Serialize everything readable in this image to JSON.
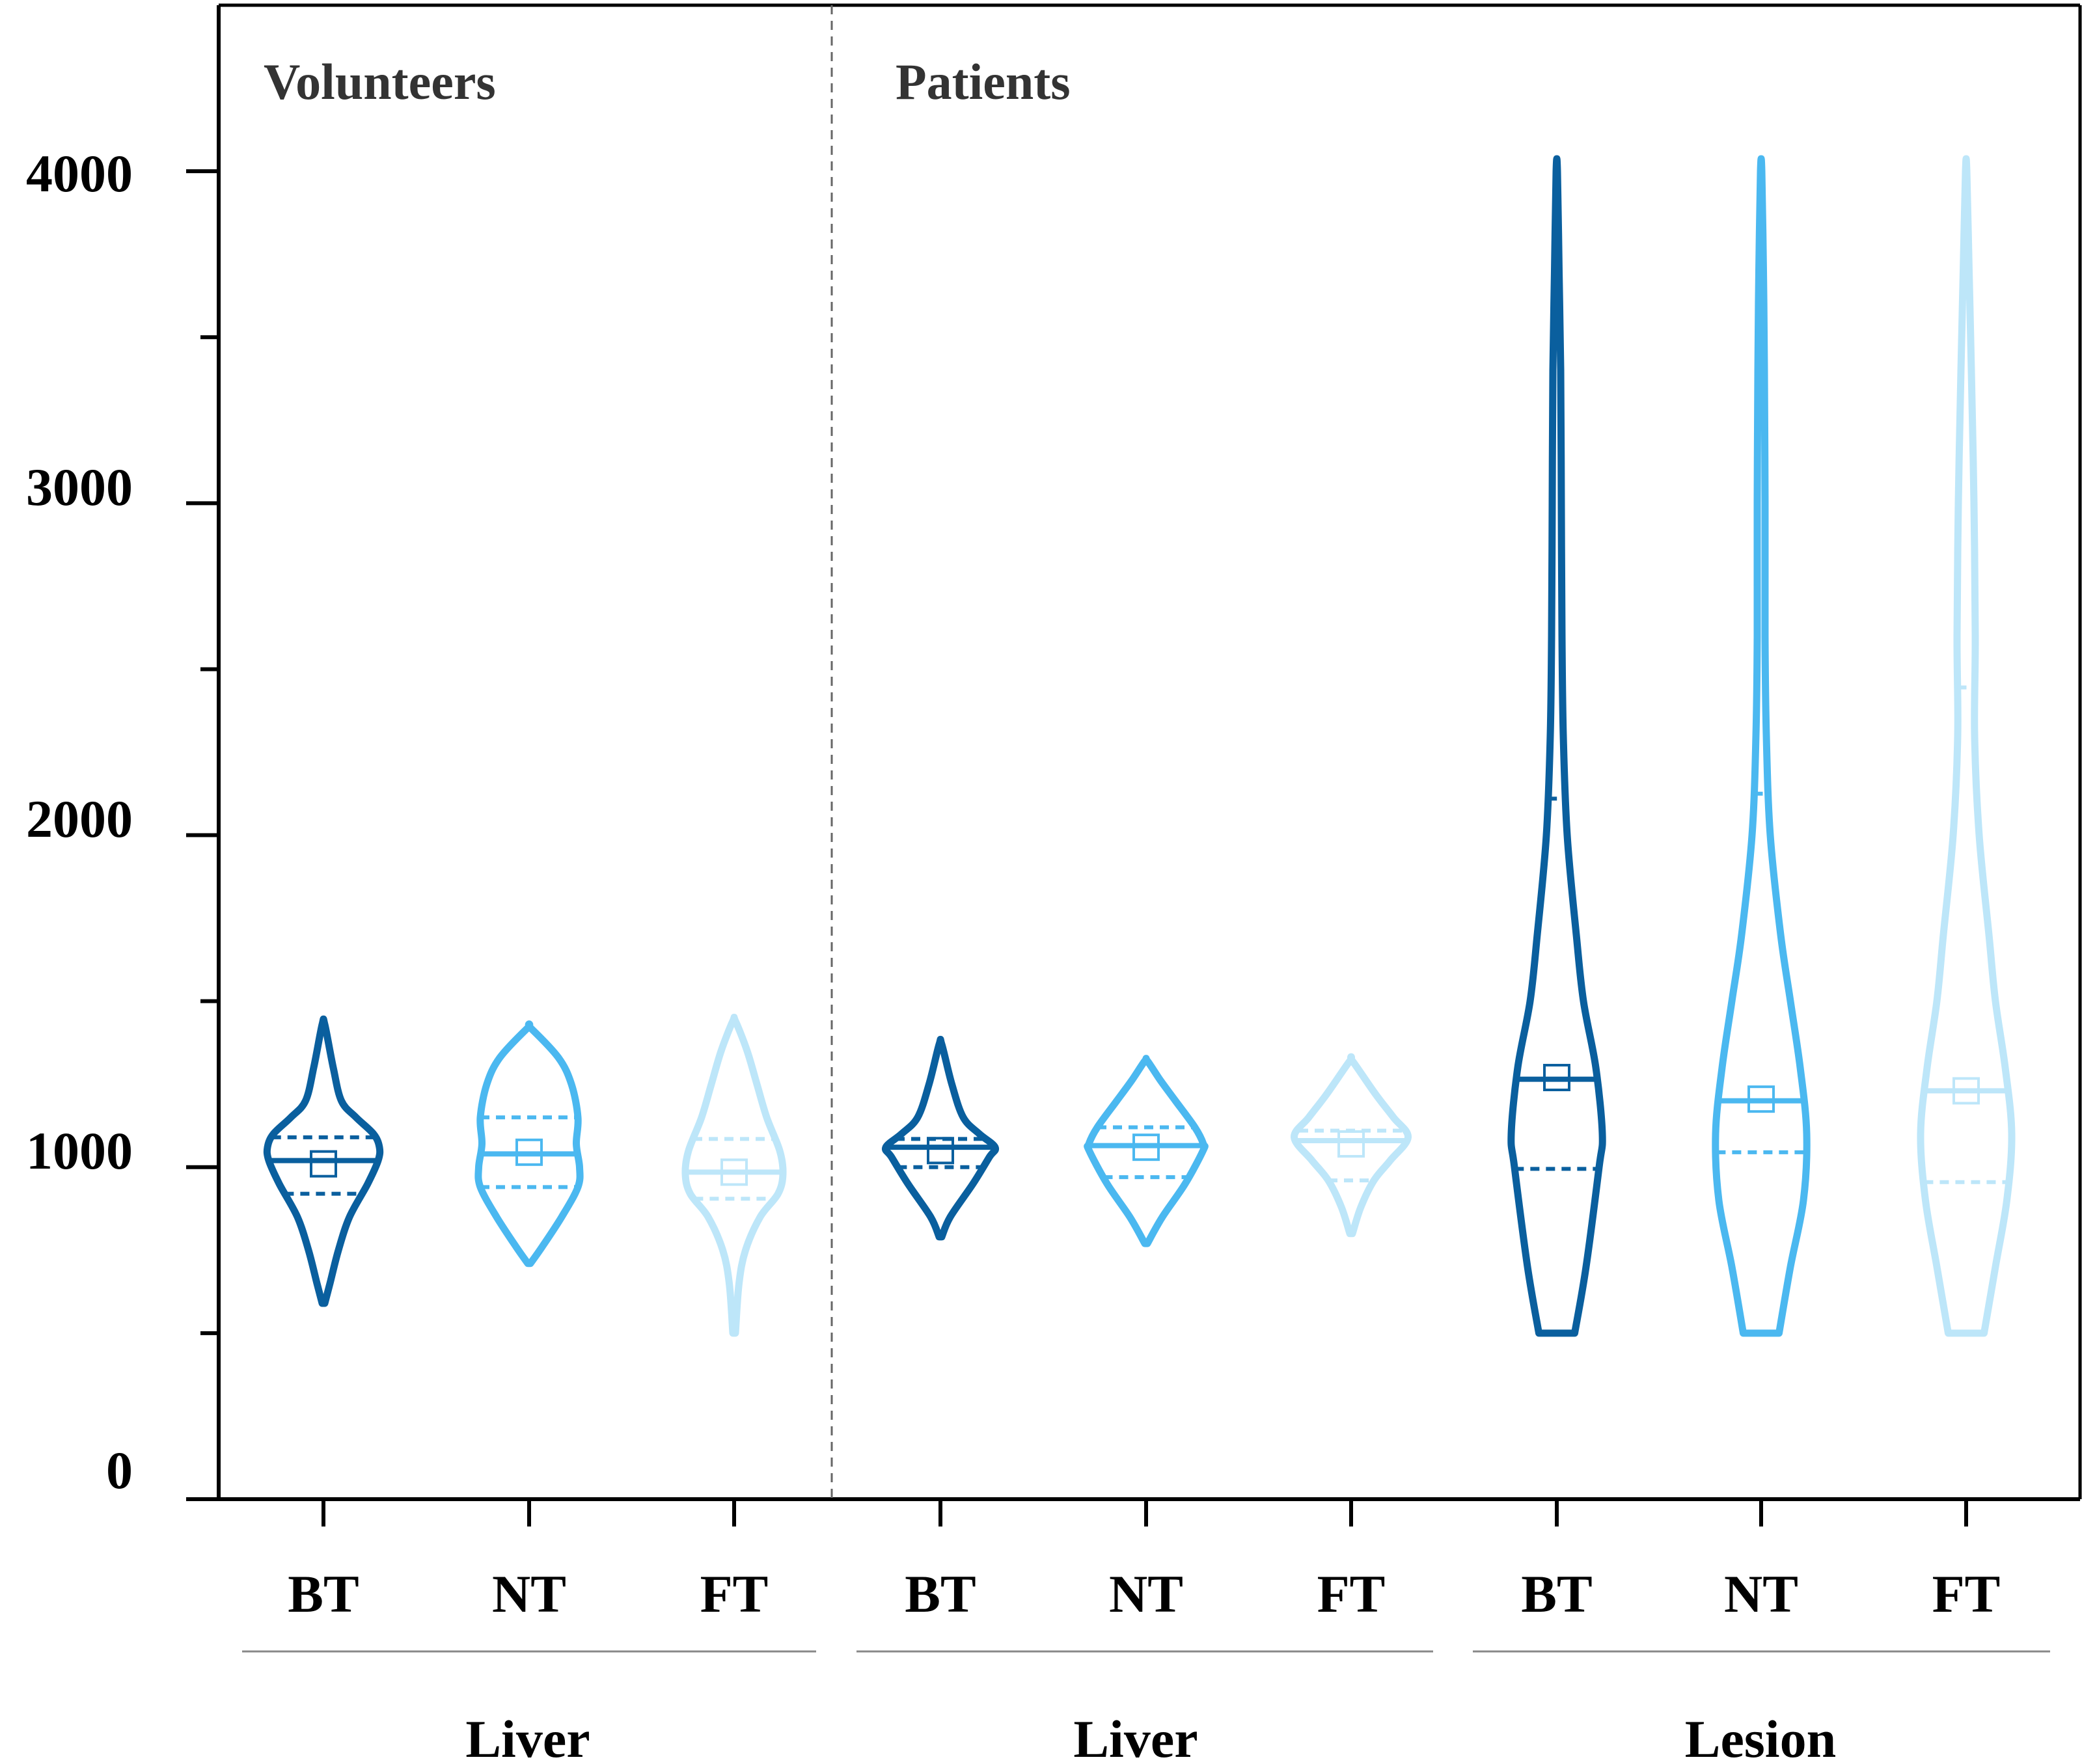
{
  "chart_data": {
    "type": "violin",
    "ylim": [
      0,
      4500
    ],
    "yticks_major": [
      0,
      1000,
      2000,
      3000,
      4000
    ],
    "yticks_minor": [
      500,
      1500,
      2500,
      3500
    ],
    "ytick_labels": [
      "0",
      "1000",
      "2000",
      "3000",
      "4000"
    ],
    "panels": [
      {
        "label": "Volunteers"
      },
      {
        "label": "Patients"
      }
    ],
    "groups": [
      {
        "label": "Liver"
      },
      {
        "label": "Liver"
      },
      {
        "label": "Lesion"
      }
    ],
    "series": [
      {
        "category": "BT",
        "panel": "Volunteers",
        "group": "Liver",
        "color": "#0a5f9e",
        "min": 590,
        "max": 1430,
        "median": 1020,
        "q1": 920,
        "q3": 1090,
        "mean": 1010,
        "profile": [
          [
            590,
            4
          ],
          [
            650,
            20
          ],
          [
            750,
            46
          ],
          [
            850,
            80
          ],
          [
            950,
            136
          ],
          [
            1020,
            168
          ],
          [
            1060,
            172
          ],
          [
            1100,
            154
          ],
          [
            1150,
            100
          ],
          [
            1200,
            55
          ],
          [
            1300,
            30
          ],
          [
            1430,
            4
          ]
        ]
      },
      {
        "category": "NT",
        "panel": "Volunteers",
        "group": "Liver",
        "color": "#4bb8f0",
        "min": 710,
        "max": 1420,
        "median": 1040,
        "q1": 940,
        "q3": 1150,
        "mean": 1045,
        "profile": [
          [
            710,
            4
          ],
          [
            760,
            40
          ],
          [
            850,
            100
          ],
          [
            940,
            150
          ],
          [
            1000,
            155
          ],
          [
            1070,
            145
          ],
          [
            1150,
            150
          ],
          [
            1250,
            130
          ],
          [
            1330,
            90
          ],
          [
            1420,
            4
          ]
        ]
      },
      {
        "category": "FT",
        "panel": "Volunteers",
        "group": "Liver",
        "color": "#bde6f9",
        "min": 500,
        "max": 1440,
        "median": 985,
        "q1": 905,
        "q3": 1085,
        "mean": 985,
        "profile": [
          [
            500,
            4
          ],
          [
            650,
            15
          ],
          [
            750,
            35
          ],
          [
            850,
            80
          ],
          [
            920,
            135
          ],
          [
            980,
            150
          ],
          [
            1050,
            140
          ],
          [
            1150,
            100
          ],
          [
            1250,
            70
          ],
          [
            1350,
            40
          ],
          [
            1440,
            4
          ]
        ]
      },
      {
        "category": "BT",
        "panel": "Patients",
        "group": "Liver",
        "color": "#0a5f9e",
        "min": 790,
        "max": 1370,
        "median": 1060,
        "q1": 1000,
        "q3": 1085,
        "mean": 1050,
        "profile": [
          [
            790,
            4
          ],
          [
            850,
            30
          ],
          [
            950,
            100
          ],
          [
            1030,
            150
          ],
          [
            1060,
            168
          ],
          [
            1100,
            120
          ],
          [
            1150,
            70
          ],
          [
            1250,
            35
          ],
          [
            1370,
            4
          ]
        ]
      },
      {
        "category": "NT",
        "panel": "Patients",
        "group": "Liver",
        "color": "#4bb8f0",
        "min": 770,
        "max": 1320,
        "median": 1065,
        "q1": 970,
        "q3": 1120,
        "mean": 1060,
        "profile": [
          [
            770,
            4
          ],
          [
            850,
            50
          ],
          [
            950,
            120
          ],
          [
            1050,
            175
          ],
          [
            1070,
            176
          ],
          [
            1120,
            150
          ],
          [
            1200,
            90
          ],
          [
            1260,
            45
          ],
          [
            1320,
            4
          ]
        ]
      },
      {
        "category": "FT",
        "panel": "Patients",
        "group": "Liver",
        "color": "#bde6f9",
        "min": 800,
        "max": 1320,
        "median": 1080,
        "q1": 960,
        "q3": 1110,
        "mean": 1070,
        "profile": [
          [
            800,
            4
          ],
          [
            880,
            30
          ],
          [
            960,
            70
          ],
          [
            1020,
            120
          ],
          [
            1090,
            175
          ],
          [
            1150,
            130
          ],
          [
            1220,
            75
          ],
          [
            1320,
            4
          ]
        ]
      },
      {
        "category": "BT",
        "panel": "Patients",
        "group": "Lesion",
        "color": "#0a5f9e",
        "min": 500,
        "max": 4000,
        "median": 1265,
        "q1": 995,
        "q3": 2110,
        "mean": 1270,
        "profile": [
          [
            500,
            55
          ],
          [
            700,
            90
          ],
          [
            1000,
            130
          ],
          [
            1100,
            140
          ],
          [
            1300,
            120
          ],
          [
            1500,
            82
          ],
          [
            1700,
            60
          ],
          [
            2000,
            32
          ],
          [
            2300,
            20
          ],
          [
            2600,
            16
          ],
          [
            3000,
            14
          ],
          [
            3400,
            12
          ],
          [
            3700,
            7
          ],
          [
            4000,
            2
          ]
        ]
      },
      {
        "category": "NT",
        "panel": "Patients",
        "group": "Lesion",
        "color": "#4bb8f0",
        "min": 500,
        "max": 4000,
        "median": 1200,
        "q1": 1045,
        "q3": 2125,
        "mean": 1205,
        "profile": [
          [
            500,
            55
          ],
          [
            700,
            90
          ],
          [
            900,
            130
          ],
          [
            1100,
            140
          ],
          [
            1300,
            120
          ],
          [
            1500,
            90
          ],
          [
            1700,
            60
          ],
          [
            2000,
            28
          ],
          [
            2300,
            16
          ],
          [
            2600,
            12
          ],
          [
            3000,
            12
          ],
          [
            3400,
            10
          ],
          [
            3700,
            7
          ],
          [
            4000,
            2
          ]
        ]
      },
      {
        "category": "FT",
        "panel": "Patients",
        "group": "Lesion",
        "color": "#bde6f9",
        "min": 500,
        "max": 4000,
        "median": 1230,
        "q1": 955,
        "q3": 2445,
        "mean": 1230,
        "profile": [
          [
            500,
            55
          ],
          [
            700,
            90
          ],
          [
            900,
            125
          ],
          [
            1100,
            140
          ],
          [
            1300,
            120
          ],
          [
            1500,
            90
          ],
          [
            1700,
            70
          ],
          [
            2000,
            40
          ],
          [
            2300,
            26
          ],
          [
            2600,
            28
          ],
          [
            3000,
            24
          ],
          [
            3400,
            16
          ],
          [
            3700,
            9
          ],
          [
            4000,
            2
          ]
        ]
      }
    ]
  }
}
